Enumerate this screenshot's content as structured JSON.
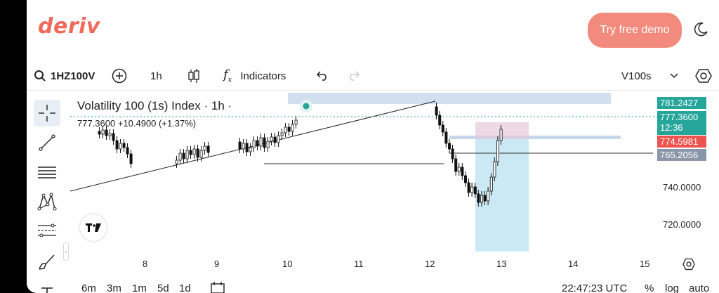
{
  "header": {
    "logo": "deriv",
    "cta_label": "Try free demo"
  },
  "toolbar": {
    "symbol": "1HZ100V",
    "interval": "1h",
    "indicators_label": "Indicators",
    "market_select": "V100s"
  },
  "legend": {
    "title": "Volatility 100 (1s) Index · 1h ·",
    "values": "777.3600  +10.4900 (+1.37%)"
  },
  "price_axis": {
    "tags": [
      {
        "value": "781.2427",
        "color": "#26a69a"
      },
      {
        "value": "777.3600",
        "sub": "12:36",
        "color": "#26a69a"
      },
      {
        "value": "774.5981",
        "color": "#ef5350"
      },
      {
        "value": "765.2056",
        "color": "#8b97a8"
      }
    ],
    "labels": [
      "740.0000",
      "720.0000"
    ]
  },
  "time_axis": {
    "labels": [
      "8",
      "9",
      "10",
      "11",
      "12",
      "13",
      "14",
      "15"
    ]
  },
  "bottom_bar": {
    "ranges": [
      "6m",
      "3m",
      "1m",
      "5d",
      "1d"
    ],
    "clock": "22:47:23 UTC",
    "percent": "%",
    "log": "log",
    "auto": "auto"
  },
  "colors": {
    "brand": "#ef6a5b",
    "cta": "#f28a7d",
    "up": "#26a69a",
    "down": "#ef5350"
  }
}
